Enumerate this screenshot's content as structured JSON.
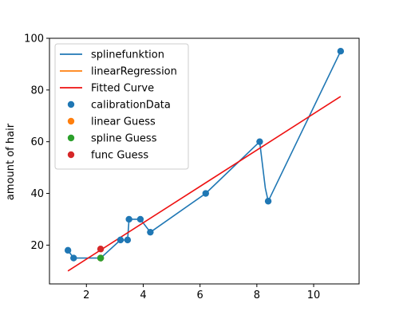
{
  "chart_data": {
    "type": "line",
    "title": "",
    "xlabel": "",
    "ylabel": "amount of hair",
    "xlim": [
      0.7,
      11.6
    ],
    "ylim": [
      5,
      100
    ],
    "x_ticks": [
      2,
      4,
      6,
      8,
      10
    ],
    "y_ticks": [
      20,
      40,
      60,
      80,
      100
    ],
    "grid": false,
    "legend_position": "top-left",
    "series": [
      {
        "name": "splinefunktion",
        "kind": "line",
        "color": "#1f77b4",
        "x": [
          1.35,
          1.55,
          2.5,
          3.2,
          3.45,
          3.5,
          3.9,
          4.25,
          6.2,
          8.1,
          8.3,
          8.4,
          10.95
        ],
        "y": [
          18,
          15,
          15,
          22,
          22,
          30,
          30,
          25,
          40,
          60,
          42,
          37,
          95
        ]
      },
      {
        "name": "linearRegression",
        "kind": "line",
        "color": "#ff7f0e",
        "x": [],
        "y": []
      },
      {
        "name": "Fitted Curve",
        "kind": "line",
        "color": "#ee1111",
        "x": [
          1.35,
          10.95
        ],
        "y": [
          10,
          77.5
        ]
      },
      {
        "name": "calibrationData",
        "kind": "scatter",
        "color": "#1f77b4",
        "x": [
          1.35,
          1.55,
          2.5,
          3.2,
          3.45,
          3.5,
          3.9,
          4.25,
          6.2,
          8.1,
          8.4,
          10.95
        ],
        "y": [
          18,
          15,
          15,
          22,
          22,
          30,
          30,
          25,
          40,
          60,
          37,
          95
        ]
      },
      {
        "name": "linear Guess",
        "kind": "scatter",
        "color": "#ff7f0e",
        "x": [
          2.5
        ],
        "y": [
          15
        ]
      },
      {
        "name": "spline Guess",
        "kind": "scatter",
        "color": "#2ca02c",
        "x": [
          2.5
        ],
        "y": [
          15
        ]
      },
      {
        "name": "func Guess",
        "kind": "scatter",
        "color": "#d62728",
        "x": [
          2.5
        ],
        "y": [
          18.5
        ]
      }
    ]
  }
}
